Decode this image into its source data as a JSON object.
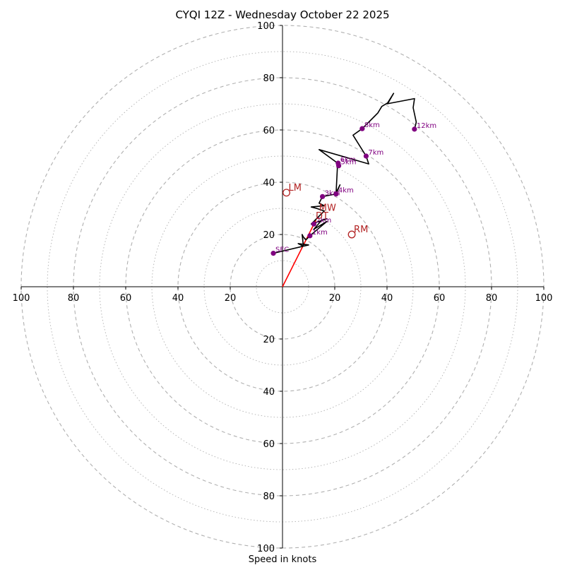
{
  "chart_data": {
    "type": "hodograph",
    "title": "CYQI 12Z - Wednesday October 22 2025",
    "xlabel": "Speed in knots",
    "units": "knots",
    "max_speed": 100,
    "major_ring_step": 20,
    "minor_ring_step": 10,
    "tick_labels": {
      "left": [
        "100",
        "80",
        "60",
        "40",
        "20"
      ],
      "right": [
        "20",
        "40",
        "60",
        "80",
        "100"
      ],
      "up": [
        "20",
        "40",
        "60",
        "80",
        "100"
      ],
      "down": [
        "20",
        "40",
        "60",
        "80",
        "100"
      ]
    },
    "colors": {
      "trace": "#000000",
      "markers": "#800080",
      "motion": "#b22222",
      "shear_vector": "#ff0000",
      "rings": "#b0b0b0",
      "axes": "#000000"
    },
    "trace": [
      [
        -3.5,
        12.8
      ],
      [
        10,
        16
      ],
      [
        6,
        16.5
      ],
      [
        8,
        15.5
      ],
      [
        7.5,
        20
      ],
      [
        8,
        19
      ],
      [
        9,
        18
      ],
      [
        10.5,
        19.5
      ],
      [
        14,
        22.5
      ],
      [
        17,
        25
      ],
      [
        12,
        22
      ],
      [
        15,
        25.5
      ],
      [
        17,
        26
      ],
      [
        11,
        24
      ],
      [
        14,
        27
      ],
      [
        16,
        29
      ],
      [
        13,
        30
      ],
      [
        11,
        30.5
      ],
      [
        16,
        31
      ],
      [
        14,
        32
      ],
      [
        15.3,
        34.5
      ],
      [
        20.5,
        35.5
      ],
      [
        22,
        39
      ],
      [
        20.5,
        36
      ],
      [
        21,
        45.5
      ],
      [
        21.5,
        47
      ],
      [
        14,
        52.5
      ],
      [
        33,
        47
      ],
      [
        32,
        50
      ],
      [
        27,
        58
      ],
      [
        30.5,
        60.5
      ],
      [
        33,
        63
      ],
      [
        35,
        65
      ],
      [
        36.5,
        66.5
      ],
      [
        38,
        69
      ],
      [
        40.5,
        70.5
      ],
      [
        42.5,
        74
      ],
      [
        40,
        70
      ],
      [
        50.5,
        72
      ],
      [
        50,
        68.5
      ],
      [
        51.2,
        63
      ],
      [
        50.5,
        60.3
      ]
    ],
    "height_markers": [
      {
        "label": "SFC",
        "u": -3.5,
        "v": 12.8
      },
      {
        "label": "1km",
        "u": 10.5,
        "v": 19.5
      },
      {
        "label": "2km",
        "u": 12,
        "v": 24
      },
      {
        "label": "3km",
        "u": 15.3,
        "v": 34.5
      },
      {
        "label": "4km",
        "u": 20.5,
        "v": 35.5
      },
      {
        "label": "5km",
        "u": 21.5,
        "v": 46.3
      },
      {
        "label": "6km",
        "u": 21.3,
        "v": 47.3
      },
      {
        "label": "7km",
        "u": 32,
        "v": 50
      },
      {
        "label": "8km",
        "u": 30.5,
        "v": 60.5
      },
      {
        "label": "12km",
        "u": 50.5,
        "v": 60.3
      }
    ],
    "storm_motion": [
      {
        "label": "LM",
        "u": 1.5,
        "v": 36,
        "style": "open-circle"
      },
      {
        "label": "RM",
        "u": 26.5,
        "v": 20,
        "style": "open-circle"
      },
      {
        "label": "MW",
        "u": 14,
        "v": 29,
        "style": "label"
      },
      {
        "label": "DT",
        "u": 12.7,
        "v": 26,
        "style": "label"
      }
    ],
    "shear_vector": {
      "from": [
        0,
        0
      ],
      "to": [
        12.8,
        25.5
      ]
    }
  }
}
